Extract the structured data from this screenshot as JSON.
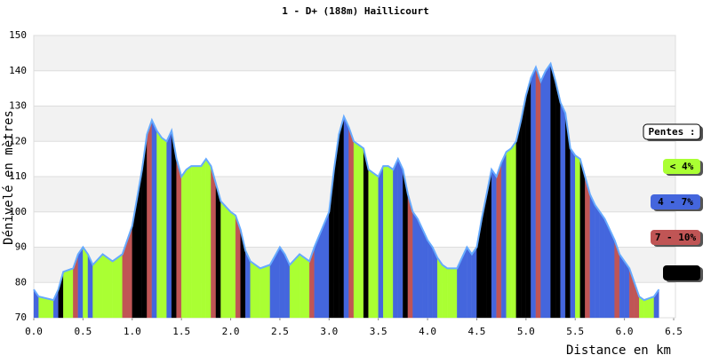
{
  "chart_data": {
    "type": "profile",
    "title": "1 - D+ (188m) Haillicourt",
    "x_label": "Distance en km",
    "y_label": "Dénivelé en mètres",
    "legend_title": "Pentes :",
    "slope_classes": [
      {
        "label": "< 4%",
        "max": 4,
        "color": "#aaff33"
      },
      {
        "label": "4 - 7%",
        "max": 7,
        "color": "#4466dd"
      },
      {
        "label": "7 - 10%",
        "max": 10,
        "color": "#c05555"
      },
      {
        "label": "> 10%",
        "color": "#000000"
      }
    ],
    "line_color": "#66aaff",
    "x": [
      0.0,
      0.05,
      0.2,
      0.25,
      0.3,
      0.4,
      0.45,
      0.5,
      0.55,
      0.6,
      0.7,
      0.8,
      0.9,
      1.0,
      1.1,
      1.15,
      1.2,
      1.25,
      1.3,
      1.35,
      1.4,
      1.45,
      1.5,
      1.55,
      1.6,
      1.7,
      1.75,
      1.8,
      1.85,
      1.9,
      2.0,
      2.05,
      2.1,
      2.15,
      2.2,
      2.3,
      2.4,
      2.5,
      2.55,
      2.6,
      2.7,
      2.8,
      2.85,
      3.0,
      3.05,
      3.1,
      3.15,
      3.2,
      3.25,
      3.3,
      3.35,
      3.4,
      3.5,
      3.55,
      3.6,
      3.65,
      3.7,
      3.75,
      3.8,
      3.85,
      3.9,
      3.95,
      4.0,
      4.05,
      4.1,
      4.15,
      4.2,
      4.3,
      4.4,
      4.45,
      4.5,
      4.55,
      4.6,
      4.65,
      4.7,
      4.75,
      4.8,
      4.85,
      4.9,
      4.95,
      5.0,
      5.05,
      5.1,
      5.15,
      5.2,
      5.25,
      5.3,
      5.35,
      5.4,
      5.45,
      5.5,
      5.55,
      5.6,
      5.65,
      5.7,
      5.75,
      5.8,
      5.85,
      5.9,
      5.95,
      6.0,
      6.05,
      6.1,
      6.15,
      6.2,
      6.3,
      6.35
    ],
    "series": [
      {
        "name": "Altitude",
        "values": [
          78,
          76,
          75,
          78,
          83,
          84,
          88,
          90,
          88,
          85,
          88,
          86,
          88,
          96,
          112,
          122,
          126,
          123,
          121,
          120,
          123,
          115,
          110,
          112,
          113,
          113,
          115,
          113,
          108,
          103,
          100,
          99,
          95,
          89,
          86,
          84,
          85,
          90,
          88,
          85,
          88,
          86,
          90,
          100,
          112,
          122,
          127,
          124,
          120,
          119,
          118,
          112,
          110,
          113,
          113,
          112,
          115,
          112,
          105,
          100,
          98,
          95,
          92,
          90,
          87,
          85,
          84,
          84,
          90,
          88,
          90,
          98,
          105,
          112,
          110,
          114,
          117,
          118,
          120,
          126,
          133,
          138,
          141,
          137,
          140,
          142,
          137,
          131,
          128,
          118,
          116,
          115,
          110,
          105,
          102,
          100,
          98,
          95,
          92,
          88,
          86,
          84,
          80,
          76,
          75,
          76,
          78
        ]
      }
    ],
    "xlim": [
      0,
      6.5
    ],
    "ylim": [
      70,
      150
    ],
    "xticks": [
      {
        "value": 0,
        "label": "0.0"
      },
      0.5,
      {
        "value": 1,
        "label": "1.0"
      },
      1.5,
      {
        "value": 2,
        "label": "2.0"
      },
      2.5,
      {
        "value": 3,
        "label": "3.0"
      },
      3.5,
      {
        "value": 4,
        "label": "4.0"
      },
      4.5,
      {
        "value": 5,
        "label": "5.0"
      },
      5.5,
      {
        "value": 6,
        "label": "6.0"
      },
      6.5
    ],
    "yticks": [
      70,
      80,
      90,
      100,
      110,
      120,
      130,
      140,
      150
    ],
    "grid": true
  }
}
